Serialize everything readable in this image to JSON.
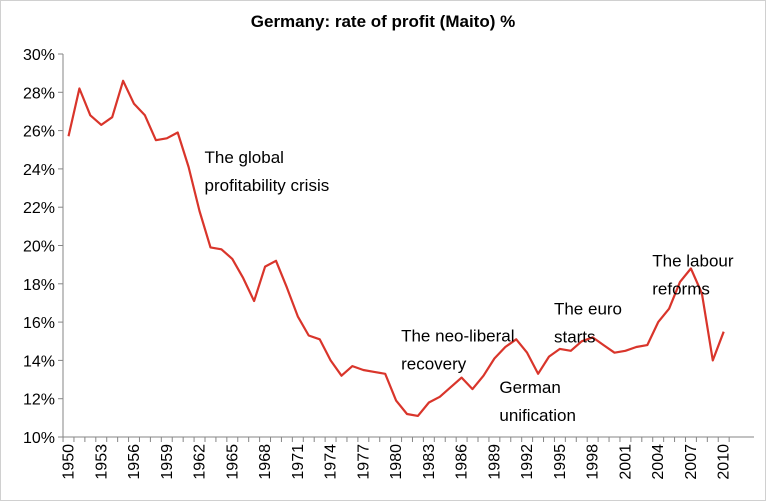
{
  "chart_data": {
    "type": "line",
    "title": "Germany: rate of profit (Maito) %",
    "xlabel": "",
    "ylabel": "",
    "xlim": [
      1950,
      2010
    ],
    "ylim": [
      10,
      30
    ],
    "y_tick_values": [
      10,
      12,
      14,
      16,
      18,
      20,
      22,
      24,
      26,
      28,
      30
    ],
    "y_tick_labels": [
      "10%",
      "12%",
      "14%",
      "16%",
      "18%",
      "20%",
      "22%",
      "24%",
      "26%",
      "28%",
      "30%"
    ],
    "x_tick_labels": [
      "1950",
      "1953",
      "1956",
      "1959",
      "1962",
      "1965",
      "1968",
      "1971",
      "1974",
      "1977",
      "1980",
      "1983",
      "1986",
      "1989",
      "1992",
      "1995",
      "1998",
      "2001",
      "2004",
      "2007",
      "2010"
    ],
    "grid": false,
    "legend": "none",
    "series": [
      {
        "color": "#d9352b",
        "x": [
          1950,
          1951,
          1952,
          1953,
          1954,
          1955,
          1956,
          1957,
          1958,
          1959,
          1960,
          1961,
          1962,
          1963,
          1964,
          1965,
          1966,
          1967,
          1968,
          1969,
          1970,
          1971,
          1972,
          1973,
          1974,
          1975,
          1976,
          1977,
          1978,
          1979,
          1980,
          1981,
          1982,
          1983,
          1984,
          1985,
          1986,
          1987,
          1988,
          1989,
          1990,
          1991,
          1992,
          1993,
          1994,
          1995,
          1996,
          1997,
          1998,
          1999,
          2000,
          2001,
          2002,
          2003,
          2004,
          2005,
          2006,
          2007,
          2008,
          2009,
          2010
        ],
        "values": [
          25.7,
          28.2,
          26.8,
          26.3,
          26.7,
          28.6,
          27.4,
          26.8,
          25.5,
          25.6,
          25.9,
          24.1,
          21.8,
          19.9,
          19.8,
          19.3,
          18.3,
          17.1,
          18.9,
          19.2,
          17.8,
          16.3,
          15.3,
          15.1,
          14.0,
          13.2,
          13.7,
          13.5,
          13.4,
          13.3,
          11.9,
          11.2,
          11.1,
          11.8,
          12.1,
          12.6,
          13.1,
          12.5,
          13.2,
          14.1,
          14.7,
          15.1,
          14.4,
          13.3,
          14.2,
          14.6,
          14.5,
          15.0,
          15.2,
          14.8,
          14.4,
          14.5,
          14.7,
          14.8,
          16.0,
          16.7,
          18.1,
          18.8,
          17.5,
          14.0,
          15.5
        ]
      }
    ],
    "annotations": [
      {
        "year": 1962,
        "value": 24.3,
        "lines": [
          "The global",
          "profitability crisis"
        ]
      },
      {
        "year": 1980,
        "value": 15.0,
        "lines": [
          "The neo-liberal",
          "recovery"
        ]
      },
      {
        "year": 1989,
        "value": 12.3,
        "lines": [
          "German",
          "unification"
        ]
      },
      {
        "year": 1994,
        "value": 16.4,
        "lines": [
          "The euro",
          "starts"
        ]
      },
      {
        "year": 2003,
        "value": 18.9,
        "lines": [
          "The labour",
          "reforms"
        ]
      }
    ]
  }
}
